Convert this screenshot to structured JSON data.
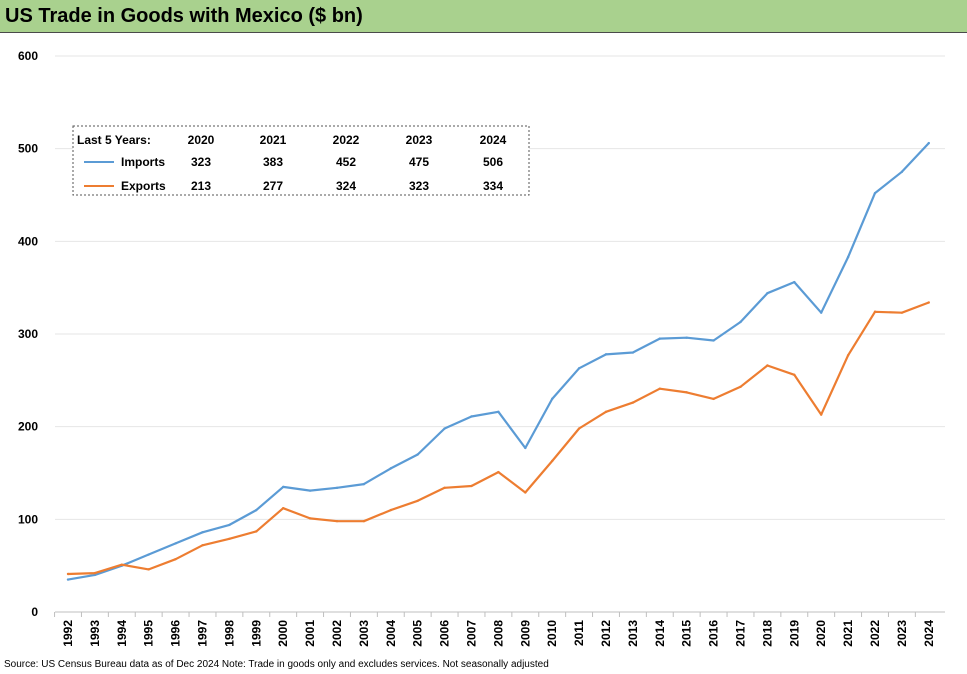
{
  "title": "US Trade in Goods with Mexico ($ bn)",
  "source": "Source: US Census Bureau data as of Dec 2024 Note: Trade in goods only and excludes services. Not seasonally adjusted",
  "colors": {
    "title_bar": "#a9d18e",
    "imports": "#5b9bd5",
    "exports": "#ed7d31",
    "grid": "#e6e6e6"
  },
  "summary_table": {
    "header_label": "Last 5 Years:",
    "years": [
      "2020",
      "2021",
      "2022",
      "2023",
      "2024"
    ],
    "rows": [
      {
        "label": "Imports",
        "values": [
          "323",
          "383",
          "452",
          "475",
          "506"
        ]
      },
      {
        "label": "Exports",
        "values": [
          "213",
          "277",
          "324",
          "323",
          "334"
        ]
      }
    ]
  },
  "chart_data": {
    "type": "line",
    "title": "US Trade in Goods with Mexico ($ bn)",
    "xlabel": "",
    "ylabel": "",
    "ylim": [
      0,
      600
    ],
    "yticks": [
      0,
      100,
      200,
      300,
      400,
      500,
      600
    ],
    "grid": true,
    "legend": "inset table top-left",
    "x": [
      "1992",
      "1993",
      "1994",
      "1995",
      "1996",
      "1997",
      "1998",
      "1999",
      "2000",
      "2001",
      "2002",
      "2003",
      "2004",
      "2005",
      "2006",
      "2007",
      "2008",
      "2009",
      "2010",
      "2011",
      "2012",
      "2013",
      "2014",
      "2015",
      "2016",
      "2017",
      "2018",
      "2019",
      "2020",
      "2021",
      "2022",
      "2023",
      "2024"
    ],
    "series": [
      {
        "name": "Imports",
        "values": [
          35,
          40,
          50,
          62,
          74,
          86,
          94,
          110,
          135,
          131,
          134,
          138,
          155,
          170,
          198,
          211,
          216,
          177,
          230,
          263,
          278,
          280,
          295,
          296,
          293,
          313,
          344,
          356,
          323,
          383,
          452,
          475,
          506
        ]
      },
      {
        "name": "Exports",
        "values": [
          41,
          42,
          51,
          46,
          57,
          72,
          79,
          87,
          112,
          101,
          98,
          98,
          110,
          120,
          134,
          136,
          151,
          129,
          163,
          198,
          216,
          226,
          241,
          237,
          230,
          243,
          266,
          256,
          213,
          277,
          324,
          323,
          334
        ]
      }
    ]
  }
}
